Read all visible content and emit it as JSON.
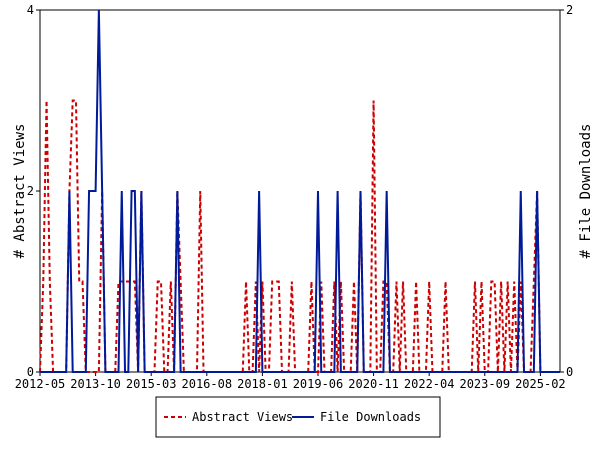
{
  "chart_data": {
    "type": "line",
    "y_label": "# Abstract Views",
    "y2_label": "# File Downloads",
    "x": [
      "2012-05",
      "2012-06",
      "2012-07",
      "2012-08",
      "2012-09",
      "2012-10",
      "2012-11",
      "2012-12",
      "2013-01",
      "2013-02",
      "2013-03",
      "2013-04",
      "2013-05",
      "2013-06",
      "2013-07",
      "2013-08",
      "2013-09",
      "2013-10",
      "2013-11",
      "2013-12",
      "2014-01",
      "2014-02",
      "2014-03",
      "2014-04",
      "2014-05",
      "2014-06",
      "2014-07",
      "2014-08",
      "2014-09",
      "2014-10",
      "2014-11",
      "2014-12",
      "2015-01",
      "2015-02",
      "2015-03",
      "2015-04",
      "2015-05",
      "2015-06",
      "2015-07",
      "2015-08",
      "2015-09",
      "2015-10",
      "2015-11",
      "2015-12",
      "2016-01",
      "2016-02",
      "2016-03",
      "2016-04",
      "2016-05",
      "2016-06",
      "2016-07",
      "2016-08",
      "2016-09",
      "2016-10",
      "2016-11",
      "2016-12",
      "2017-01",
      "2017-02",
      "2017-03",
      "2017-04",
      "2017-05",
      "2017-06",
      "2017-07",
      "2017-08",
      "2017-09",
      "2017-10",
      "2017-11",
      "2017-12",
      "2018-01",
      "2018-02",
      "2018-03",
      "2018-04",
      "2018-05",
      "2018-06",
      "2018-07",
      "2018-08",
      "2018-09",
      "2018-10",
      "2018-11",
      "2018-12",
      "2019-01",
      "2019-02",
      "2019-03",
      "2019-04",
      "2019-05",
      "2019-06",
      "2019-07",
      "2019-08",
      "2019-09",
      "2019-10",
      "2019-11",
      "2019-12",
      "2020-01",
      "2020-02",
      "2020-03",
      "2020-04",
      "2020-05",
      "2020-06",
      "2020-07",
      "2020-08",
      "2020-09",
      "2020-10",
      "2020-11",
      "2020-12",
      "2021-01",
      "2021-02",
      "2021-03",
      "2021-04",
      "2021-05",
      "2021-06",
      "2021-07",
      "2021-08",
      "2021-09",
      "2021-10",
      "2021-11",
      "2021-12",
      "2022-01",
      "2022-02",
      "2022-03",
      "2022-04",
      "2022-05",
      "2022-06",
      "2022-07",
      "2022-08",
      "2022-09",
      "2022-10",
      "2022-11",
      "2022-12",
      "2023-01",
      "2023-02",
      "2023-03",
      "2023-04",
      "2023-05",
      "2023-06",
      "2023-07",
      "2023-08",
      "2023-09",
      "2023-10",
      "2023-11",
      "2023-12",
      "2024-01",
      "2024-02",
      "2024-03",
      "2024-04",
      "2024-05",
      "2024-06",
      "2024-07",
      "2024-08",
      "2024-09",
      "2024-10",
      "2024-11",
      "2024-12",
      "2025-01",
      "2025-02",
      "2025-03",
      "2025-04",
      "2025-05",
      "2025-06",
      "2025-07",
      "2025-08"
    ],
    "xticks": [
      "2012-05",
      "2013-10",
      "2015-03",
      "2016-08",
      "2018-01",
      "2019-06",
      "2020-11",
      "2022-04",
      "2023-09",
      "2025-02"
    ],
    "ylim": [
      0,
      4
    ],
    "yticks": [
      0,
      2,
      4
    ],
    "y2lim": [
      0,
      2
    ],
    "y2ticks": [
      0,
      2
    ],
    "series": [
      {
        "name": "Abstract Views",
        "color": "#cc0000",
        "dashed": true,
        "values": [
          0,
          1,
          3,
          1,
          0,
          0,
          0,
          0,
          0,
          2,
          3,
          3,
          1,
          1,
          0,
          0,
          0,
          0,
          0,
          2,
          0,
          0,
          0,
          0,
          1,
          1,
          1,
          1,
          1,
          1,
          0,
          2,
          0,
          0,
          0,
          0,
          1,
          1,
          0,
          0,
          1,
          0,
          2,
          1,
          0,
          0,
          0,
          0,
          0,
          2,
          0,
          0,
          0,
          0,
          0,
          0,
          0,
          0,
          0,
          0,
          0,
          0,
          0,
          1,
          0,
          0,
          1,
          0,
          1,
          0,
          0,
          1,
          1,
          1,
          0,
          0,
          0,
          1,
          0,
          0,
          0,
          0,
          0,
          1,
          0,
          0,
          1,
          0,
          0,
          0,
          1,
          0,
          1,
          0,
          0,
          0,
          1,
          0,
          2,
          0,
          0,
          0,
          3,
          0,
          0,
          1,
          1,
          0,
          0,
          1,
          0,
          1,
          0,
          0,
          0,
          1,
          0,
          0,
          0,
          1,
          0,
          0,
          0,
          0,
          1,
          0,
          0,
          0,
          0,
          0,
          0,
          0,
          0,
          1,
          0,
          1,
          0,
          0,
          1,
          1,
          0,
          1,
          0,
          1,
          0,
          1,
          0,
          1,
          0,
          0,
          0,
          1,
          2,
          0,
          0,
          0,
          0,
          0,
          0,
          0
        ]
      },
      {
        "name": "File Downloads",
        "color": "#001a99",
        "axis": "y2",
        "values": [
          0,
          0,
          0,
          0,
          0,
          0,
          0,
          0,
          0,
          1,
          0,
          0,
          0,
          0,
          0,
          1,
          1,
          1,
          2,
          1,
          0,
          0,
          0,
          0,
          0,
          1,
          0,
          0,
          1,
          1,
          0,
          1,
          0,
          0,
          0,
          0,
          0,
          0,
          0,
          0,
          0,
          0,
          1,
          0,
          0,
          0,
          0,
          0,
          0,
          0,
          0,
          0,
          0,
          0,
          0,
          0,
          0,
          0,
          0,
          0,
          0,
          0,
          0,
          0,
          0,
          0,
          0,
          1,
          0,
          0,
          0,
          0,
          0,
          0,
          0,
          0,
          0,
          0,
          0,
          0,
          0,
          0,
          0,
          0,
          0,
          1,
          0,
          0,
          0,
          0,
          0,
          1,
          0,
          0,
          0,
          0,
          0,
          0,
          1,
          0,
          0,
          0,
          0,
          0,
          0,
          0,
          1,
          0,
          0,
          0,
          0,
          0,
          0,
          0,
          0,
          0,
          0,
          0,
          0,
          0,
          0,
          0,
          0,
          0,
          0,
          0,
          0,
          0,
          0,
          0,
          0,
          0,
          0,
          0,
          0,
          0,
          0,
          0,
          0,
          0,
          0,
          0,
          0,
          0,
          0,
          0,
          0,
          1,
          0,
          0,
          0,
          0,
          1,
          0,
          0,
          0,
          0,
          0,
          0,
          0
        ]
      }
    ]
  }
}
